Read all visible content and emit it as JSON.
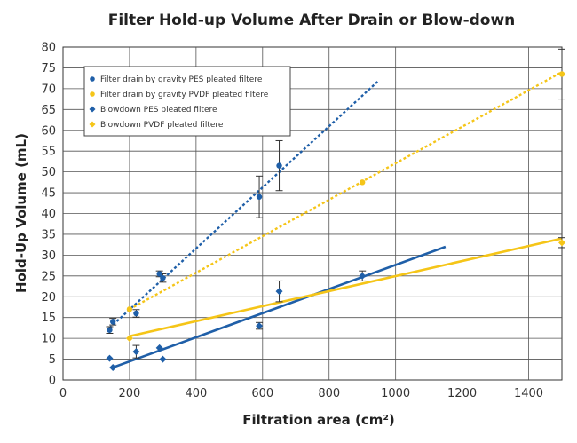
{
  "chart_data": {
    "type": "scatter",
    "title": "Filter Hold-up Volume After Drain or Blow-down",
    "xlabel": "Filtration area (cm²)",
    "ylabel": "Hold-Up Volume (mL)",
    "xlim": [
      0,
      1500
    ],
    "ylim": [
      0,
      80
    ],
    "x_ticks": [
      "0",
      "200",
      "400",
      "600",
      "800",
      "1000",
      "1200",
      "1400"
    ],
    "y_ticks": [
      "0",
      "5",
      "10",
      "15",
      "20",
      "25",
      "30",
      "35",
      "40",
      "45",
      "50",
      "55",
      "60",
      "65",
      "70",
      "75",
      "80"
    ],
    "grid": true,
    "legend_position": "top-left",
    "series": [
      {
        "name": "Filter drain by gravity PES pleated filtere",
        "marker": "circle",
        "color": "#1f5fa8",
        "trendline": {
          "style": "dotted",
          "from": [
            140,
            12.5
          ],
          "to": [
            950,
            72
          ]
        },
        "points": [
          {
            "x": 140,
            "y": 12,
            "err": 0.8
          },
          {
            "x": 150,
            "y": 14,
            "err": 0.8
          },
          {
            "x": 220,
            "y": 16,
            "err": 0.9
          },
          {
            "x": 290,
            "y": 25.5,
            "err": 0.7
          },
          {
            "x": 300,
            "y": 24.5,
            "err": 1.0
          },
          {
            "x": 590,
            "y": 44,
            "err": 5
          },
          {
            "x": 650,
            "y": 51.5,
            "err": 6
          }
        ]
      },
      {
        "name": "Filter drain by gravity PVDF pleated filtere",
        "marker": "circle",
        "color": "#f5c518",
        "trendline": {
          "style": "dotted",
          "from": [
            200,
            17
          ],
          "to": [
            1500,
            74
          ]
        },
        "points": [
          {
            "x": 200,
            "y": 17,
            "err": 0
          },
          {
            "x": 900,
            "y": 47.5,
            "err": 0
          },
          {
            "x": 1500,
            "y": 73.5,
            "err": 6
          }
        ]
      },
      {
        "name": "Blowdown PES pleated filtere",
        "marker": "diamond",
        "color": "#1f5fa8",
        "trendline": {
          "style": "solid",
          "from": [
            150,
            3
          ],
          "to": [
            1150,
            32
          ]
        },
        "points": [
          {
            "x": 140,
            "y": 5.2,
            "err": 0
          },
          {
            "x": 150,
            "y": 3,
            "err": 0
          },
          {
            "x": 220,
            "y": 6.8,
            "err": 1.5
          },
          {
            "x": 290,
            "y": 7.7,
            "err": 0
          },
          {
            "x": 300,
            "y": 5,
            "err": 0
          },
          {
            "x": 590,
            "y": 13,
            "err": 0.8
          },
          {
            "x": 650,
            "y": 21.3,
            "err": 2.5
          },
          {
            "x": 900,
            "y": 25,
            "err": 1.2
          }
        ]
      },
      {
        "name": "Blowdown PVDF pleated filtere",
        "marker": "diamond",
        "color": "#f5c518",
        "trendline": {
          "style": "solid",
          "from": [
            200,
            10.5
          ],
          "to": [
            1500,
            34
          ]
        },
        "points": [
          {
            "x": 200,
            "y": 10,
            "err": 0
          },
          {
            "x": 1500,
            "y": 33,
            "err": 1.2
          }
        ]
      }
    ]
  }
}
